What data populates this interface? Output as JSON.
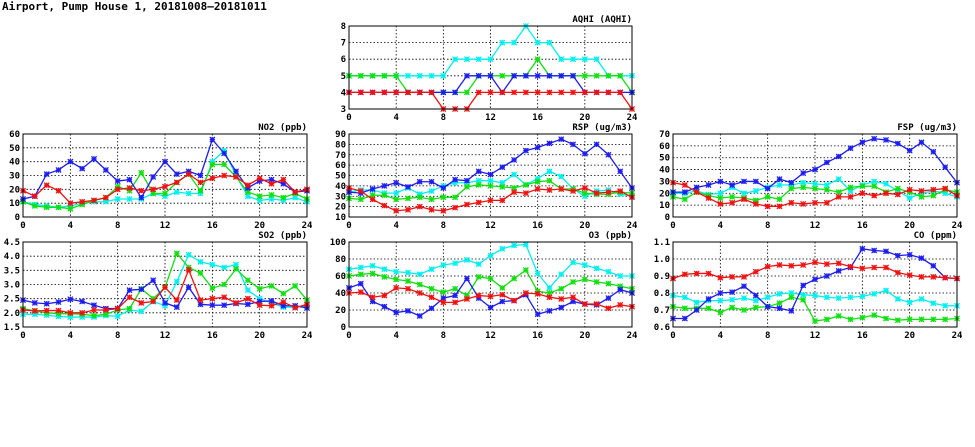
{
  "title": "Airport, Pump House 1, 20181008—20181011",
  "colors": {
    "blue": "#1c1cf0",
    "cyan": "#00f0f0",
    "green": "#10e010",
    "red": "#f01010"
  },
  "chart_data": [
    {
      "id": "aqhi",
      "type": "line",
      "title": "AQHI (AQHI)",
      "ylim": [
        3,
        8
      ],
      "yticks": [
        "3",
        "4",
        "5",
        "6",
        "7",
        "8"
      ],
      "xlim": [
        0,
        24
      ],
      "xticks": [
        "0",
        "4",
        "8",
        "12",
        "16",
        "20",
        "24"
      ],
      "grid": true,
      "series": [
        {
          "name": "cyan",
          "values": [
            5,
            5,
            5,
            5,
            5,
            5,
            5,
            5,
            5,
            6,
            6,
            6,
            6,
            7,
            7,
            8,
            7,
            7,
            6,
            6,
            6,
            6,
            5,
            5,
            5
          ]
        },
        {
          "name": "green",
          "values": [
            5,
            5,
            5,
            5,
            5,
            4,
            4,
            4,
            4,
            4,
            4,
            5,
            5,
            5,
            5,
            5,
            6,
            5,
            5,
            5,
            5,
            5,
            5,
            5,
            4
          ]
        },
        {
          "name": "blue",
          "values": [
            4,
            4,
            4,
            4,
            4,
            4,
            4,
            4,
            4,
            4,
            5,
            5,
            5,
            4,
            5,
            5,
            5,
            5,
            5,
            5,
            4,
            4,
            4,
            4,
            4
          ]
        },
        {
          "name": "red",
          "values": [
            4,
            4,
            4,
            4,
            4,
            4,
            4,
            4,
            3,
            3,
            3,
            4,
            4,
            4,
            4,
            4,
            4,
            4,
            4,
            4,
            4,
            4,
            4,
            4,
            3
          ]
        }
      ]
    },
    {
      "id": "no2",
      "type": "line",
      "title": "NO2 (ppb)",
      "ylim": [
        0,
        60
      ],
      "yticks": [
        "0",
        "10",
        "20",
        "30",
        "40",
        "50",
        "60"
      ],
      "xlim": [
        0,
        24
      ],
      "xticks": [
        "0",
        "4",
        "8",
        "12",
        "16",
        "20",
        "24"
      ],
      "grid": true,
      "series": [
        {
          "name": "cyan",
          "values": [
            11,
            9,
            8,
            7,
            8,
            10,
            11,
            11,
            13,
            13,
            13,
            17,
            15,
            18,
            17,
            17,
            40,
            48,
            30,
            15,
            12,
            13,
            12,
            14,
            11
          ]
        },
        {
          "name": "green",
          "values": [
            11,
            8,
            7,
            7,
            6,
            9,
            12,
            14,
            22,
            19,
            32,
            17,
            17,
            25,
            31,
            19,
            38,
            38,
            29,
            18,
            15,
            16,
            14,
            17,
            13
          ]
        },
        {
          "name": "blue",
          "values": [
            13,
            15,
            31,
            34,
            40,
            35,
            42,
            34,
            26,
            27,
            14,
            29,
            40,
            31,
            33,
            30,
            56,
            46,
            33,
            21,
            26,
            27,
            24,
            18,
            19
          ]
        },
        {
          "name": "red",
          "values": [
            19,
            15,
            23,
            19,
            10,
            11,
            12,
            14,
            20,
            21,
            19,
            20,
            22,
            25,
            31,
            25,
            28,
            30,
            29,
            23,
            28,
            24,
            27,
            18,
            20
          ]
        }
      ]
    },
    {
      "id": "rsp",
      "type": "line",
      "title": "RSP (ug/m3)",
      "ylim": [
        10,
        90
      ],
      "yticks": [
        "10",
        "20",
        "30",
        "40",
        "50",
        "60",
        "70",
        "80",
        "90"
      ],
      "xlim": [
        0,
        24
      ],
      "xticks": [
        "0",
        "4",
        "8",
        "12",
        "16",
        "20",
        "24"
      ],
      "grid": true,
      "series": [
        {
          "name": "cyan",
          "values": [
            34,
            36,
            36,
            33,
            33,
            38,
            32,
            35,
            40,
            43,
            43,
            45,
            45,
            43,
            51,
            41,
            47,
            54,
            49,
            37,
            30,
            35,
            36,
            32,
            30
          ]
        },
        {
          "name": "green",
          "values": [
            28,
            27,
            31,
            31,
            27,
            28,
            29,
            27,
            29,
            29,
            39,
            41,
            40,
            39,
            38,
            41,
            44,
            45,
            37,
            37,
            33,
            32,
            32,
            34,
            33
          ]
        },
        {
          "name": "blue",
          "values": [
            34,
            33,
            37,
            40,
            43,
            39,
            44,
            44,
            38,
            46,
            45,
            54,
            51,
            58,
            65,
            74,
            77,
            81,
            85,
            80,
            71,
            80,
            70,
            54,
            38
          ]
        },
        {
          "name": "red",
          "values": [
            38,
            35,
            27,
            21,
            16,
            17,
            20,
            17,
            16,
            19,
            22,
            24,
            26,
            26,
            34,
            33,
            37,
            36,
            37,
            35,
            38,
            33,
            34,
            35,
            29
          ]
        }
      ]
    },
    {
      "id": "fsp",
      "type": "line",
      "title": "FSP (ug/m3)",
      "ylim": [
        0,
        70
      ],
      "yticks": [
        "0",
        "10",
        "20",
        "30",
        "40",
        "50",
        "60",
        "70"
      ],
      "xlim": [
        0,
        24
      ],
      "xticks": [
        "0",
        "4",
        "8",
        "12",
        "16",
        "20",
        "24"
      ],
      "grid": true,
      "series": [
        {
          "name": "cyan",
          "values": [
            20,
            20,
            22,
            19,
            20,
            25,
            20,
            22,
            25,
            27,
            27,
            29,
            28,
            27,
            32,
            22,
            27,
            30,
            28,
            22,
            16,
            20,
            22,
            20,
            17
          ]
        },
        {
          "name": "green",
          "values": [
            17,
            15,
            21,
            18,
            16,
            17,
            16,
            14,
            17,
            15,
            24,
            25,
            24,
            23,
            21,
            25,
            26,
            26,
            21,
            24,
            21,
            17,
            18,
            23,
            21
          ]
        },
        {
          "name": "blue",
          "values": [
            21,
            21,
            25,
            27,
            30,
            27,
            30,
            30,
            24,
            32,
            29,
            37,
            40,
            46,
            51,
            58,
            63,
            66,
            65,
            62,
            56,
            63,
            55,
            42,
            29
          ]
        },
        {
          "name": "red",
          "values": [
            29,
            27,
            21,
            16,
            11,
            12,
            15,
            11,
            9,
            9,
            12,
            11,
            12,
            12,
            17,
            17,
            20,
            18,
            20,
            19,
            23,
            22,
            23,
            24,
            18
          ]
        }
      ]
    },
    {
      "id": "so2",
      "type": "line",
      "title": "SO2 (ppb)",
      "ylim": [
        1.5,
        4.5
      ],
      "yticks": [
        "1.5",
        "2.0",
        "2.5",
        "3.0",
        "3.5",
        "4.0",
        "4.5"
      ],
      "xlim": [
        0,
        24
      ],
      "xticks": [
        "0",
        "4",
        "8",
        "12",
        "16",
        "20",
        "24"
      ],
      "grid": true,
      "series": [
        {
          "name": "cyan",
          "values": [
            1.95,
            1.95,
            1.92,
            1.87,
            1.85,
            1.85,
            1.85,
            1.9,
            1.88,
            2.1,
            2.05,
            2.4,
            2.25,
            3.1,
            4.05,
            3.8,
            3.7,
            3.6,
            3.7,
            2.8,
            2.5,
            2.35,
            2.2,
            2.2,
            2.25
          ]
        },
        {
          "name": "green",
          "values": [
            2.15,
            2.07,
            2.0,
            1.97,
            1.97,
            1.95,
            1.9,
            1.95,
            2.1,
            2.15,
            2.85,
            2.5,
            2.9,
            4.1,
            3.6,
            3.4,
            2.87,
            3.0,
            3.55,
            3.15,
            2.85,
            2.95,
            2.68,
            2.95,
            2.45
          ]
        },
        {
          "name": "blue",
          "values": [
            2.45,
            2.35,
            2.32,
            2.38,
            2.48,
            2.4,
            2.27,
            2.15,
            2.15,
            2.8,
            2.83,
            3.15,
            2.35,
            2.2,
            2.9,
            2.3,
            2.27,
            2.27,
            2.33,
            2.3,
            2.4,
            2.42,
            2.25,
            2.25,
            2.17
          ]
        },
        {
          "name": "red",
          "values": [
            2.1,
            2.07,
            2.08,
            2.08,
            2.0,
            2.0,
            2.1,
            2.1,
            2.15,
            2.55,
            2.35,
            2.4,
            2.9,
            2.45,
            3.52,
            2.45,
            2.5,
            2.55,
            2.35,
            2.5,
            2.27,
            2.25,
            2.38,
            2.18,
            2.3
          ]
        }
      ]
    },
    {
      "id": "o3",
      "type": "line",
      "title": "O3 (ppb)",
      "ylim": [
        0,
        100
      ],
      "yticks": [
        "0",
        "20",
        "40",
        "60",
        "80",
        "100"
      ],
      "xlim": [
        0,
        24
      ],
      "xticks": [
        "0",
        "4",
        "8",
        "12",
        "16",
        "20",
        "24"
      ],
      "grid": true,
      "series": [
        {
          "name": "cyan",
          "values": [
            68,
            70,
            72,
            68,
            65,
            64,
            62,
            68,
            73,
            75,
            79,
            74,
            84,
            92,
            96,
            97,
            63,
            46,
            62,
            76,
            73,
            69,
            65,
            60,
            60
          ]
        },
        {
          "name": "green",
          "values": [
            60,
            62,
            63,
            59,
            56,
            54,
            50,
            45,
            41,
            45,
            37,
            59,
            57,
            46,
            57,
            67,
            42,
            40,
            45,
            53,
            56,
            53,
            51,
            48,
            45
          ]
        },
        {
          "name": "blue",
          "values": [
            46,
            51,
            30,
            24,
            17,
            19,
            13,
            22,
            34,
            37,
            57,
            34,
            23,
            30,
            31,
            38,
            15,
            19,
            23,
            30,
            27,
            26,
            34,
            44,
            40
          ]
        },
        {
          "name": "red",
          "values": [
            40,
            41,
            35,
            37,
            46,
            45,
            40,
            35,
            29,
            29,
            33,
            37,
            36,
            38,
            31,
            40,
            39,
            35,
            33,
            35,
            27,
            27,
            22,
            26,
            24
          ]
        }
      ]
    },
    {
      "id": "co",
      "type": "line",
      "title": "CO (ppm)",
      "ylim": [
        0.6,
        1.1
      ],
      "yticks": [
        "0.6",
        "0.7",
        "0.8",
        "0.9",
        "1.0",
        "1.1"
      ],
      "xlim": [
        0,
        24
      ],
      "xticks": [
        "0",
        "4",
        "8",
        "12",
        "16",
        "20",
        "24"
      ],
      "grid": true,
      "series": [
        {
          "name": "cyan",
          "values": [
            0.785,
            0.775,
            0.745,
            0.755,
            0.755,
            0.76,
            0.77,
            0.755,
            0.775,
            0.795,
            0.8,
            0.79,
            0.785,
            0.775,
            0.77,
            0.775,
            0.78,
            0.795,
            0.815,
            0.765,
            0.745,
            0.765,
            0.74,
            0.725,
            0.725
          ]
        },
        {
          "name": "green",
          "values": [
            0.72,
            0.71,
            0.71,
            0.71,
            0.685,
            0.715,
            0.7,
            0.715,
            0.72,
            0.74,
            0.775,
            0.76,
            0.635,
            0.645,
            0.665,
            0.645,
            0.655,
            0.67,
            0.65,
            0.64,
            0.645,
            0.645,
            0.645,
            0.645,
            0.65
          ]
        },
        {
          "name": "blue",
          "values": [
            0.65,
            0.65,
            0.7,
            0.765,
            0.8,
            0.805,
            0.84,
            0.785,
            0.72,
            0.71,
            0.695,
            0.845,
            0.88,
            0.9,
            0.93,
            0.95,
            1.06,
            1.05,
            1.045,
            1.02,
            1.025,
            1.005,
            0.96,
            0.89,
            0.885
          ]
        },
        {
          "name": "red",
          "values": [
            0.885,
            0.91,
            0.915,
            0.915,
            0.89,
            0.895,
            0.895,
            0.925,
            0.955,
            0.965,
            0.96,
            0.965,
            0.98,
            0.97,
            0.975,
            0.955,
            0.945,
            0.95,
            0.95,
            0.92,
            0.905,
            0.895,
            0.895,
            0.89,
            0.885
          ]
        }
      ]
    }
  ]
}
